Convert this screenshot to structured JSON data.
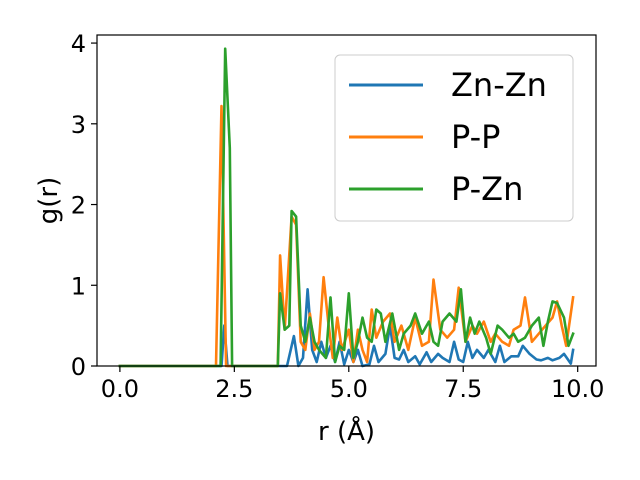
{
  "chart_data": {
    "type": "line",
    "xlabel": "r (Å)",
    "ylabel": "g(r)",
    "xlim": [
      -0.5,
      10.4
    ],
    "ylim": [
      0,
      4.1
    ],
    "xticks": [
      0.0,
      2.5,
      5.0,
      7.5,
      10.0
    ],
    "xtick_labels": [
      "0.0",
      "2.5",
      "5.0",
      "7.5",
      "10.0"
    ],
    "yticks": [
      0,
      1,
      2,
      3,
      4
    ],
    "ytick_labels": [
      "0",
      "1",
      "2",
      "3",
      "4"
    ],
    "grid": false,
    "legend_position": "top-right",
    "series": [
      {
        "name": "Zn-Zn",
        "color": "#1f77b4",
        "points": [
          [
            0.0,
            0
          ],
          [
            2.15,
            0
          ],
          [
            2.22,
            0.0
          ],
          [
            2.28,
            0.5
          ],
          [
            2.35,
            0.0
          ],
          [
            2.45,
            0
          ],
          [
            3.4,
            0
          ],
          [
            3.5,
            0
          ],
          [
            3.65,
            0.0
          ],
          [
            3.8,
            0.37
          ],
          [
            3.9,
            0.0
          ],
          [
            4.0,
            0.1
          ],
          [
            4.1,
            0.95
          ],
          [
            4.2,
            0.2
          ],
          [
            4.3,
            0.05
          ],
          [
            4.4,
            0.3
          ],
          [
            4.5,
            0.1
          ],
          [
            4.6,
            0.25
          ],
          [
            4.7,
            0.05
          ],
          [
            4.8,
            0.3
          ],
          [
            4.9,
            0.02
          ],
          [
            5.0,
            0.2
          ],
          [
            5.1,
            0.05
          ],
          [
            5.2,
            0.2
          ],
          [
            5.3,
            0.0
          ],
          [
            5.45,
            0.02
          ],
          [
            5.55,
            0.25
          ],
          [
            5.65,
            0.05
          ],
          [
            5.8,
            0.15
          ],
          [
            5.9,
            0.5
          ],
          [
            6.0,
            0.1
          ],
          [
            6.1,
            0.08
          ],
          [
            6.2,
            0.2
          ],
          [
            6.3,
            0.05
          ],
          [
            6.45,
            0.12
          ],
          [
            6.55,
            0.02
          ],
          [
            6.7,
            0.17
          ],
          [
            6.8,
            0.05
          ],
          [
            6.95,
            0.15
          ],
          [
            7.05,
            0.1
          ],
          [
            7.2,
            0.05
          ],
          [
            7.3,
            0.3
          ],
          [
            7.4,
            0.08
          ],
          [
            7.5,
            0.05
          ],
          [
            7.6,
            0.3
          ],
          [
            7.7,
            0.1
          ],
          [
            7.8,
            0.2
          ],
          [
            7.95,
            0.1
          ],
          [
            8.05,
            0.2
          ],
          [
            8.2,
            0.05
          ],
          [
            8.3,
            0.25
          ],
          [
            8.4,
            0.05
          ],
          [
            8.55,
            0.12
          ],
          [
            8.7,
            0.12
          ],
          [
            8.8,
            0.25
          ],
          [
            8.95,
            0.15
          ],
          [
            9.1,
            0.08
          ],
          [
            9.2,
            0.07
          ],
          [
            9.35,
            0.1
          ],
          [
            9.45,
            0.07
          ],
          [
            9.6,
            0.1
          ],
          [
            9.7,
            0.15
          ],
          [
            9.85,
            0.03
          ],
          [
            9.9,
            0.2
          ]
        ]
      },
      {
        "name": "P-P",
        "color": "#ff7f0e",
        "points": [
          [
            0.0,
            0
          ],
          [
            2.1,
            0
          ],
          [
            2.22,
            3.22
          ],
          [
            2.32,
            0.0
          ],
          [
            2.45,
            0
          ],
          [
            3.4,
            0
          ],
          [
            3.45,
            0
          ],
          [
            3.5,
            1.37
          ],
          [
            3.6,
            0.45
          ],
          [
            3.75,
            1.85
          ],
          [
            3.85,
            1.75
          ],
          [
            3.95,
            0.3
          ],
          [
            4.05,
            0.2
          ],
          [
            4.15,
            0.65
          ],
          [
            4.25,
            0.2
          ],
          [
            4.35,
            0.3
          ],
          [
            4.45,
            1.1
          ],
          [
            4.55,
            0.55
          ],
          [
            4.65,
            0.1
          ],
          [
            4.75,
            0.6
          ],
          [
            4.85,
            0.2
          ],
          [
            5.0,
            0.45
          ],
          [
            5.1,
            0.05
          ],
          [
            5.2,
            0.45
          ],
          [
            5.3,
            0.2
          ],
          [
            5.4,
            0.05
          ],
          [
            5.5,
            0.7
          ],
          [
            5.6,
            0.35
          ],
          [
            5.75,
            0.55
          ],
          [
            5.9,
            0.65
          ],
          [
            6.0,
            0.3
          ],
          [
            6.15,
            0.5
          ],
          [
            6.3,
            0.2
          ],
          [
            6.45,
            0.6
          ],
          [
            6.6,
            0.25
          ],
          [
            6.75,
            0.3
          ],
          [
            6.85,
            1.07
          ],
          [
            7.0,
            0.45
          ],
          [
            7.15,
            0.35
          ],
          [
            7.3,
            0.45
          ],
          [
            7.4,
            0.97
          ],
          [
            7.55,
            0.3
          ],
          [
            7.7,
            0.5
          ],
          [
            7.8,
            0.4
          ],
          [
            7.95,
            0.55
          ],
          [
            8.1,
            0.3
          ],
          [
            8.2,
            0.4
          ],
          [
            8.35,
            0.3
          ],
          [
            8.5,
            0.25
          ],
          [
            8.6,
            0.45
          ],
          [
            8.75,
            0.5
          ],
          [
            8.85,
            0.85
          ],
          [
            9.0,
            0.3
          ],
          [
            9.15,
            0.4
          ],
          [
            9.3,
            0.5
          ],
          [
            9.45,
            0.6
          ],
          [
            9.55,
            0.8
          ],
          [
            9.65,
            0.5
          ],
          [
            9.75,
            0.25
          ],
          [
            9.9,
            0.85
          ]
        ]
      },
      {
        "name": "P-Zn",
        "color": "#2ca02c",
        "points": [
          [
            0.0,
            0
          ],
          [
            2.2,
            0
          ],
          [
            2.3,
            3.93
          ],
          [
            2.4,
            2.7
          ],
          [
            2.45,
            0.0
          ],
          [
            2.6,
            0
          ],
          [
            3.4,
            0
          ],
          [
            3.45,
            0
          ],
          [
            3.5,
            0.9
          ],
          [
            3.6,
            0.45
          ],
          [
            3.7,
            0.5
          ],
          [
            3.75,
            1.92
          ],
          [
            3.85,
            1.85
          ],
          [
            3.95,
            0.5
          ],
          [
            4.05,
            0.3
          ],
          [
            4.15,
            0.6
          ],
          [
            4.25,
            0.3
          ],
          [
            4.35,
            0.2
          ],
          [
            4.5,
            0.1
          ],
          [
            4.6,
            0.85
          ],
          [
            4.7,
            0.05
          ],
          [
            4.8,
            0.25
          ],
          [
            4.9,
            0.2
          ],
          [
            5.0,
            0.9
          ],
          [
            5.1,
            0.1
          ],
          [
            5.2,
            0.3
          ],
          [
            5.3,
            0.6
          ],
          [
            5.4,
            0.35
          ],
          [
            5.5,
            0.3
          ],
          [
            5.6,
            0.7
          ],
          [
            5.7,
            0.65
          ],
          [
            5.8,
            0.3
          ],
          [
            5.95,
            0.65
          ],
          [
            6.1,
            0.2
          ],
          [
            6.2,
            0.4
          ],
          [
            6.35,
            0.5
          ],
          [
            6.45,
            0.65
          ],
          [
            6.6,
            0.4
          ],
          [
            6.75,
            0.55
          ],
          [
            6.85,
            0.3
          ],
          [
            6.95,
            0.25
          ],
          [
            7.05,
            0.55
          ],
          [
            7.2,
            0.65
          ],
          [
            7.35,
            0.55
          ],
          [
            7.45,
            0.95
          ],
          [
            7.55,
            0.3
          ],
          [
            7.65,
            0.6
          ],
          [
            7.75,
            0.4
          ],
          [
            7.85,
            0.55
          ],
          [
            8.0,
            0.35
          ],
          [
            8.1,
            0.15
          ],
          [
            8.25,
            0.5
          ],
          [
            8.35,
            0.45
          ],
          [
            8.5,
            0.35
          ],
          [
            8.6,
            0.4
          ],
          [
            8.7,
            0.3
          ],
          [
            8.85,
            0.35
          ],
          [
            9.0,
            0.5
          ],
          [
            9.15,
            0.6
          ],
          [
            9.25,
            0.25
          ],
          [
            9.35,
            0.55
          ],
          [
            9.45,
            0.8
          ],
          [
            9.55,
            0.78
          ],
          [
            9.7,
            0.6
          ],
          [
            9.8,
            0.25
          ],
          [
            9.9,
            0.4
          ]
        ]
      }
    ]
  }
}
